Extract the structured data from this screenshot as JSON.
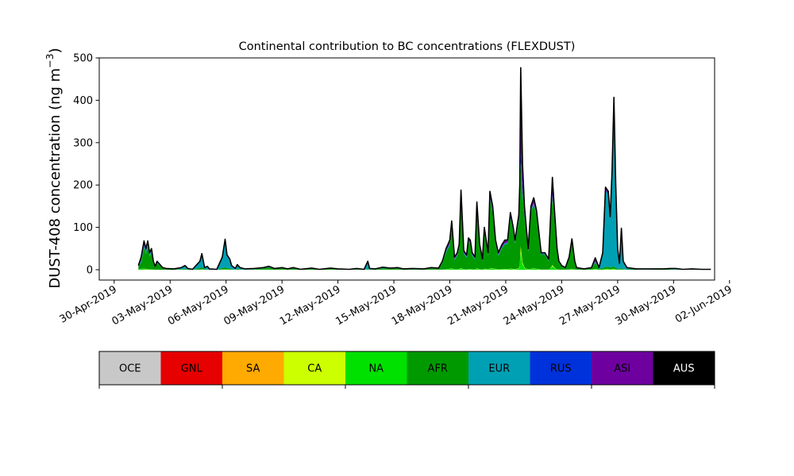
{
  "chart_data": {
    "type": "area",
    "stacked": true,
    "title": "Continental contribution to BC concentrations (FLEXDUST)",
    "ylabel_main": "DUST-408 concentration (ng m",
    "ylabel_sup": "−3",
    "ylabel_close": ")",
    "xlabel": "",
    "ylim": [
      0,
      500
    ],
    "yticks": [
      0,
      100,
      200,
      300,
      400,
      500
    ],
    "xlim": [
      -0.8,
      32.2
    ],
    "xticks": [
      {
        "day": 0,
        "label": "30-Apr-2019"
      },
      {
        "day": 3,
        "label": "03-May-2019"
      },
      {
        "day": 6,
        "label": "06-May-2019"
      },
      {
        "day": 9,
        "label": "09-May-2019"
      },
      {
        "day": 12,
        "label": "12-May-2019"
      },
      {
        "day": 15,
        "label": "15-May-2019"
      },
      {
        "day": 18,
        "label": "18-May-2019"
      },
      {
        "day": 21,
        "label": "21-May-2019"
      },
      {
        "day": 24,
        "label": "24-May-2019"
      },
      {
        "day": 27,
        "label": "27-May-2019"
      },
      {
        "day": 30,
        "label": "30-May-2019"
      },
      {
        "day": 33,
        "label": "02-Jun-2019"
      }
    ],
    "grid": false,
    "legend_position": "below",
    "series_order": [
      "OCE",
      "GNL",
      "SA",
      "CA",
      "NA",
      "AFR",
      "EUR",
      "RUS",
      "ASI",
      "AUS"
    ],
    "series": [
      {
        "name": "OCE",
        "color": "#c8c8c8"
      },
      {
        "name": "GNL",
        "color": "#e60000"
      },
      {
        "name": "SA",
        "color": "#ffaa00"
      },
      {
        "name": "CA",
        "color": "#ccff00"
      },
      {
        "name": "NA",
        "color": "#00e100"
      },
      {
        "name": "AFR",
        "color": "#009a00"
      },
      {
        "name": "EUR",
        "color": "#00a0b4"
      },
      {
        "name": "RUS",
        "color": "#0032dc"
      },
      {
        "name": "ASI",
        "color": "#6e00a0"
      },
      {
        "name": "AUS",
        "color": "#000000"
      }
    ],
    "points": [
      [
        1.3,
        10,
        2,
        8
      ],
      [
        1.45,
        30,
        3,
        15
      ],
      [
        1.6,
        68,
        5,
        50
      ],
      [
        1.7,
        50,
        5,
        35
      ],
      [
        1.8,
        68,
        5,
        55
      ],
      [
        1.9,
        40,
        4,
        30
      ],
      [
        2.0,
        50,
        4,
        40
      ],
      [
        2.1,
        20,
        3,
        15
      ],
      [
        2.2,
        8,
        2,
        6
      ],
      [
        2.3,
        20,
        3,
        16
      ],
      [
        2.4,
        15,
        3,
        12
      ],
      [
        2.6,
        5,
        2,
        3
      ],
      [
        2.8,
        3,
        1,
        2
      ],
      [
        3.2,
        2,
        1,
        1
      ],
      [
        3.6,
        5,
        3,
        1
      ],
      [
        3.8,
        10,
        6,
        2
      ],
      [
        3.95,
        3,
        2,
        1
      ],
      [
        4.2,
        1,
        1,
        0
      ],
      [
        4.6,
        20,
        14,
        4
      ],
      [
        4.7,
        38,
        28,
        5
      ],
      [
        4.85,
        5,
        4,
        1
      ],
      [
        5.0,
        8,
        6,
        1
      ],
      [
        5.1,
        2,
        1,
        0
      ],
      [
        5.5,
        1,
        1,
        0
      ],
      [
        5.8,
        30,
        24,
        3
      ],
      [
        5.95,
        72,
        60,
        5
      ],
      [
        6.05,
        35,
        28,
        3
      ],
      [
        6.2,
        25,
        20,
        2
      ],
      [
        6.3,
        10,
        8,
        1
      ],
      [
        6.5,
        3,
        2,
        0
      ],
      [
        6.6,
        12,
        9,
        2
      ],
      [
        6.75,
        5,
        3,
        1
      ],
      [
        7.0,
        2,
        1,
        0
      ],
      [
        7.5,
        3,
        1,
        1
      ],
      [
        8.0,
        5,
        1,
        3
      ],
      [
        8.3,
        8,
        1,
        5
      ],
      [
        8.6,
        3,
        1,
        2
      ],
      [
        9.0,
        5,
        1,
        3
      ],
      [
        9.3,
        2,
        1,
        1
      ],
      [
        9.6,
        5,
        1,
        3
      ],
      [
        10.0,
        1,
        0,
        1
      ],
      [
        10.6,
        4,
        1,
        2
      ],
      [
        11.0,
        1,
        0,
        1
      ],
      [
        11.6,
        4,
        1,
        2
      ],
      [
        12.0,
        2,
        0,
        1
      ],
      [
        12.6,
        1,
        0,
        0
      ],
      [
        13.0,
        3,
        1,
        1
      ],
      [
        13.4,
        1,
        0,
        0
      ],
      [
        13.6,
        20,
        16,
        2
      ],
      [
        13.7,
        3,
        2,
        0
      ],
      [
        14.0,
        2,
        1,
        1
      ],
      [
        14.4,
        6,
        2,
        3
      ],
      [
        14.8,
        4,
        1,
        2
      ],
      [
        15.2,
        5,
        1,
        3
      ],
      [
        15.5,
        2,
        1,
        1
      ],
      [
        16.0,
        3,
        1,
        1
      ],
      [
        16.6,
        2,
        0,
        1
      ],
      [
        17.0,
        5,
        1,
        3
      ],
      [
        17.4,
        4,
        1,
        2
      ],
      [
        17.6,
        20,
        2,
        15
      ],
      [
        17.8,
        50,
        3,
        40
      ],
      [
        18.0,
        70,
        3,
        55
      ],
      [
        18.1,
        115,
        3,
        95
      ],
      [
        18.25,
        30,
        2,
        22
      ],
      [
        18.4,
        40,
        2,
        32
      ],
      [
        18.5,
        60,
        2,
        50
      ],
      [
        18.6,
        188,
        3,
        165
      ],
      [
        18.75,
        45,
        2,
        36
      ],
      [
        18.9,
        35,
        2,
        28
      ],
      [
        19.0,
        75,
        2,
        65
      ],
      [
        19.1,
        70,
        2,
        60
      ],
      [
        19.2,
        40,
        2,
        32
      ],
      [
        19.35,
        30,
        2,
        24
      ],
      [
        19.45,
        160,
        3,
        140
      ],
      [
        19.6,
        60,
        2,
        50
      ],
      [
        19.75,
        25,
        2,
        20
      ],
      [
        19.85,
        100,
        2,
        85
      ],
      [
        19.95,
        70,
        2,
        58
      ],
      [
        20.05,
        40,
        2,
        32
      ],
      [
        20.15,
        185,
        3,
        165
      ],
      [
        20.3,
        150,
        3,
        130
      ],
      [
        20.45,
        70,
        2,
        58
      ],
      [
        20.6,
        40,
        2,
        32
      ],
      [
        20.8,
        60,
        2,
        50
      ],
      [
        20.95,
        70,
        2,
        58
      ],
      [
        21.1,
        70,
        2,
        60
      ],
      [
        21.25,
        135,
        2,
        120
      ],
      [
        21.4,
        100,
        2,
        88
      ],
      [
        21.5,
        70,
        2,
        60
      ],
      [
        21.6,
        100,
        2,
        85
      ],
      [
        21.7,
        130,
        2,
        110
      ],
      [
        21.75,
        200,
        3,
        150
      ],
      [
        21.8,
        477,
        5,
        195
      ],
      [
        21.9,
        250,
        4,
        160
      ],
      [
        22.0,
        150,
        3,
        120
      ],
      [
        22.1,
        100,
        2,
        85
      ],
      [
        22.2,
        50,
        2,
        42
      ],
      [
        22.35,
        150,
        3,
        135
      ],
      [
        22.5,
        170,
        3,
        150
      ],
      [
        22.65,
        140,
        3,
        125
      ],
      [
        22.8,
        80,
        2,
        70
      ],
      [
        22.9,
        40,
        2,
        35
      ],
      [
        23.1,
        40,
        2,
        35
      ],
      [
        23.3,
        25,
        2,
        20
      ],
      [
        23.4,
        120,
        3,
        100
      ],
      [
        23.5,
        218,
        3,
        160
      ],
      [
        23.6,
        150,
        3,
        120
      ],
      [
        23.75,
        50,
        2,
        42
      ],
      [
        23.85,
        20,
        2,
        16
      ],
      [
        24.0,
        10,
        1,
        8
      ],
      [
        24.2,
        5,
        1,
        3
      ],
      [
        24.4,
        30,
        1,
        25
      ],
      [
        24.55,
        73,
        2,
        60
      ],
      [
        24.7,
        20,
        1,
        15
      ],
      [
        24.8,
        5,
        1,
        3
      ],
      [
        25.2,
        2,
        0,
        1
      ],
      [
        25.6,
        5,
        1,
        3
      ],
      [
        25.8,
        28,
        2,
        15
      ],
      [
        26.0,
        5,
        1,
        2
      ],
      [
        26.2,
        40,
        36,
        3
      ],
      [
        26.35,
        195,
        180,
        5
      ],
      [
        26.5,
        185,
        170,
        5
      ],
      [
        26.6,
        125,
        115,
        4
      ],
      [
        26.7,
        230,
        215,
        5
      ],
      [
        26.8,
        407,
        390,
        6
      ],
      [
        26.9,
        200,
        190,
        3
      ],
      [
        27.0,
        50,
        45,
        2
      ],
      [
        27.1,
        15,
        12,
        1
      ],
      [
        27.2,
        98,
        90,
        3
      ],
      [
        27.3,
        20,
        17,
        1
      ],
      [
        27.5,
        5,
        4,
        1
      ],
      [
        28.0,
        2,
        1,
        1
      ],
      [
        28.5,
        2,
        1,
        0
      ],
      [
        29.0,
        2,
        1,
        1
      ],
      [
        29.5,
        2,
        1,
        1
      ],
      [
        29.8,
        3,
        2,
        1
      ],
      [
        30.1,
        3,
        1,
        0
      ],
      [
        30.5,
        1,
        0,
        0
      ],
      [
        31.0,
        2,
        1,
        0
      ],
      [
        31.5,
        1,
        0,
        0
      ],
      [
        32.0,
        1,
        0,
        0
      ]
    ],
    "points_fields": [
      "day",
      "total",
      "EUR",
      "AFR"
    ]
  }
}
